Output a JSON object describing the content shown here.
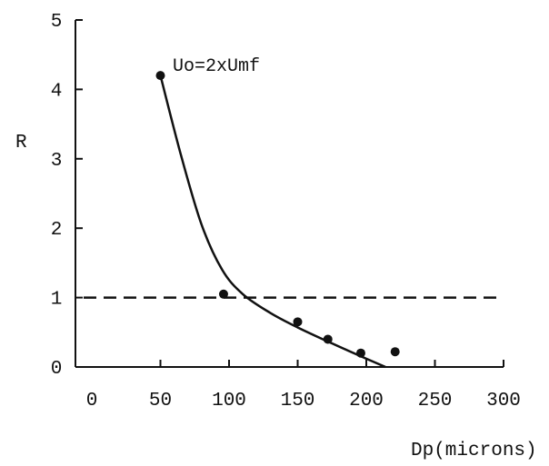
{
  "chart_data": {
    "type": "scatter",
    "title": "",
    "annotation": "Uo=2xUmf",
    "xlabel": "Dp(microns)",
    "ylabel": "R",
    "xlim": [
      0,
      300
    ],
    "ylim": [
      0,
      5
    ],
    "x_ticks": [
      0,
      50,
      100,
      150,
      200,
      250,
      300
    ],
    "y_ticks": [
      0,
      1,
      2,
      3,
      4,
      5
    ],
    "x_tick_labels": [
      "0",
      "50",
      "100",
      "150",
      "200",
      "250",
      "300"
    ],
    "y_tick_labels": [
      "0",
      "1",
      "2",
      "3",
      "4",
      "5"
    ],
    "grid": false,
    "legend": "none",
    "points": [
      {
        "x": 50,
        "y": 4.2
      },
      {
        "x": 96,
        "y": 1.05
      },
      {
        "x": 150,
        "y": 0.65
      },
      {
        "x": 172,
        "y": 0.4
      },
      {
        "x": 196,
        "y": 0.2
      },
      {
        "x": 221,
        "y": 0.22
      }
    ],
    "fit_curve": [
      {
        "x": 50,
        "y": 4.2
      },
      {
        "x": 65,
        "y": 3.05
      },
      {
        "x": 80,
        "y": 2.05
      },
      {
        "x": 95,
        "y": 1.4
      },
      {
        "x": 110,
        "y": 1.05
      },
      {
        "x": 130,
        "y": 0.78
      },
      {
        "x": 150,
        "y": 0.57
      },
      {
        "x": 175,
        "y": 0.34
      },
      {
        "x": 200,
        "y": 0.12
      },
      {
        "x": 214,
        "y": 0.0
      }
    ],
    "reference_line": {
      "y": 1,
      "style": "dashed"
    },
    "colors": {
      "ink": "#111111",
      "background": "#ffffff"
    }
  }
}
